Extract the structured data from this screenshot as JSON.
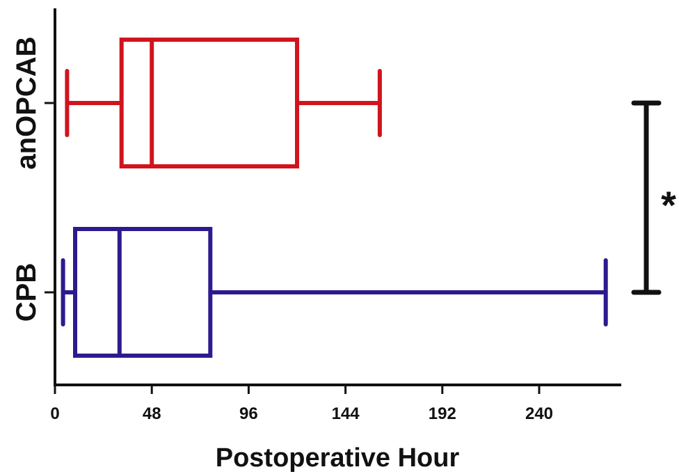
{
  "chart_data": {
    "type": "boxplot",
    "orientation": "horizontal",
    "xlabel": "Postoperative Hour",
    "ylabel": "",
    "xlim": [
      0,
      276
    ],
    "xticks": [
      0,
      48,
      96,
      144,
      192,
      240
    ],
    "tick_labels": [
      "0",
      "48",
      "96",
      "144",
      "192",
      "240"
    ],
    "groups": [
      {
        "name": "anOPCAB",
        "color": "#d0141e",
        "min": 6,
        "q1": 33,
        "median": 48,
        "q3": 120,
        "max": 161
      },
      {
        "name": "CPB",
        "color": "#2e1a8f",
        "min": 4,
        "q1": 10,
        "median": 32,
        "q3": 77,
        "max": 273
      }
    ],
    "significance": {
      "label": "*",
      "between": [
        "anOPCAB",
        "CPB"
      ],
      "color": "#111111"
    },
    "grid": false,
    "legend": "none"
  }
}
